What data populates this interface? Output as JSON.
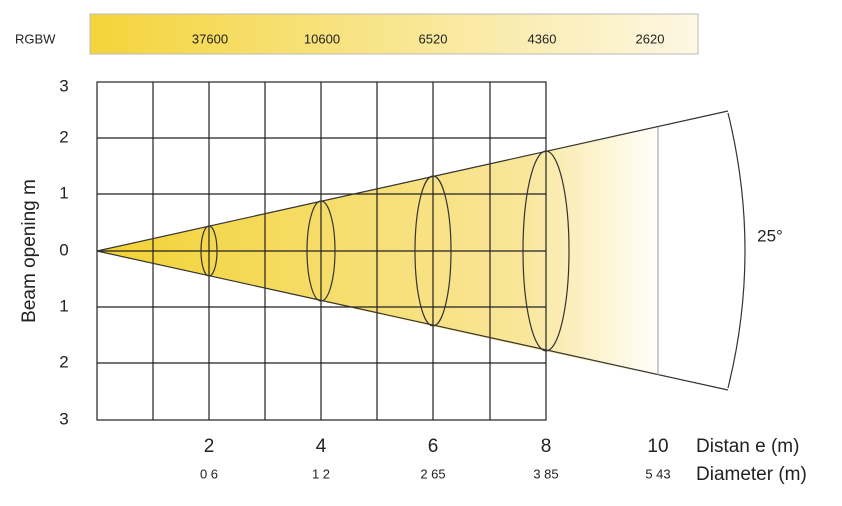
{
  "header": {
    "label": "RGBW",
    "lux": [
      "37600",
      "10600",
      "6520",
      "4360",
      "2620"
    ]
  },
  "y_axis": {
    "title": "Beam opening m",
    "ticks": [
      "3",
      "2",
      "1",
      "0",
      "1",
      "2",
      "3"
    ]
  },
  "x_axis": {
    "title": "Distan e (m)",
    "ticks": [
      "2",
      "4",
      "6",
      "8",
      "10"
    ]
  },
  "diameter": {
    "title": "Diameter (m)",
    "values": [
      "0 6",
      "1 2",
      "2 65",
      "3 85",
      "5 43"
    ]
  },
  "angle": "25°"
}
